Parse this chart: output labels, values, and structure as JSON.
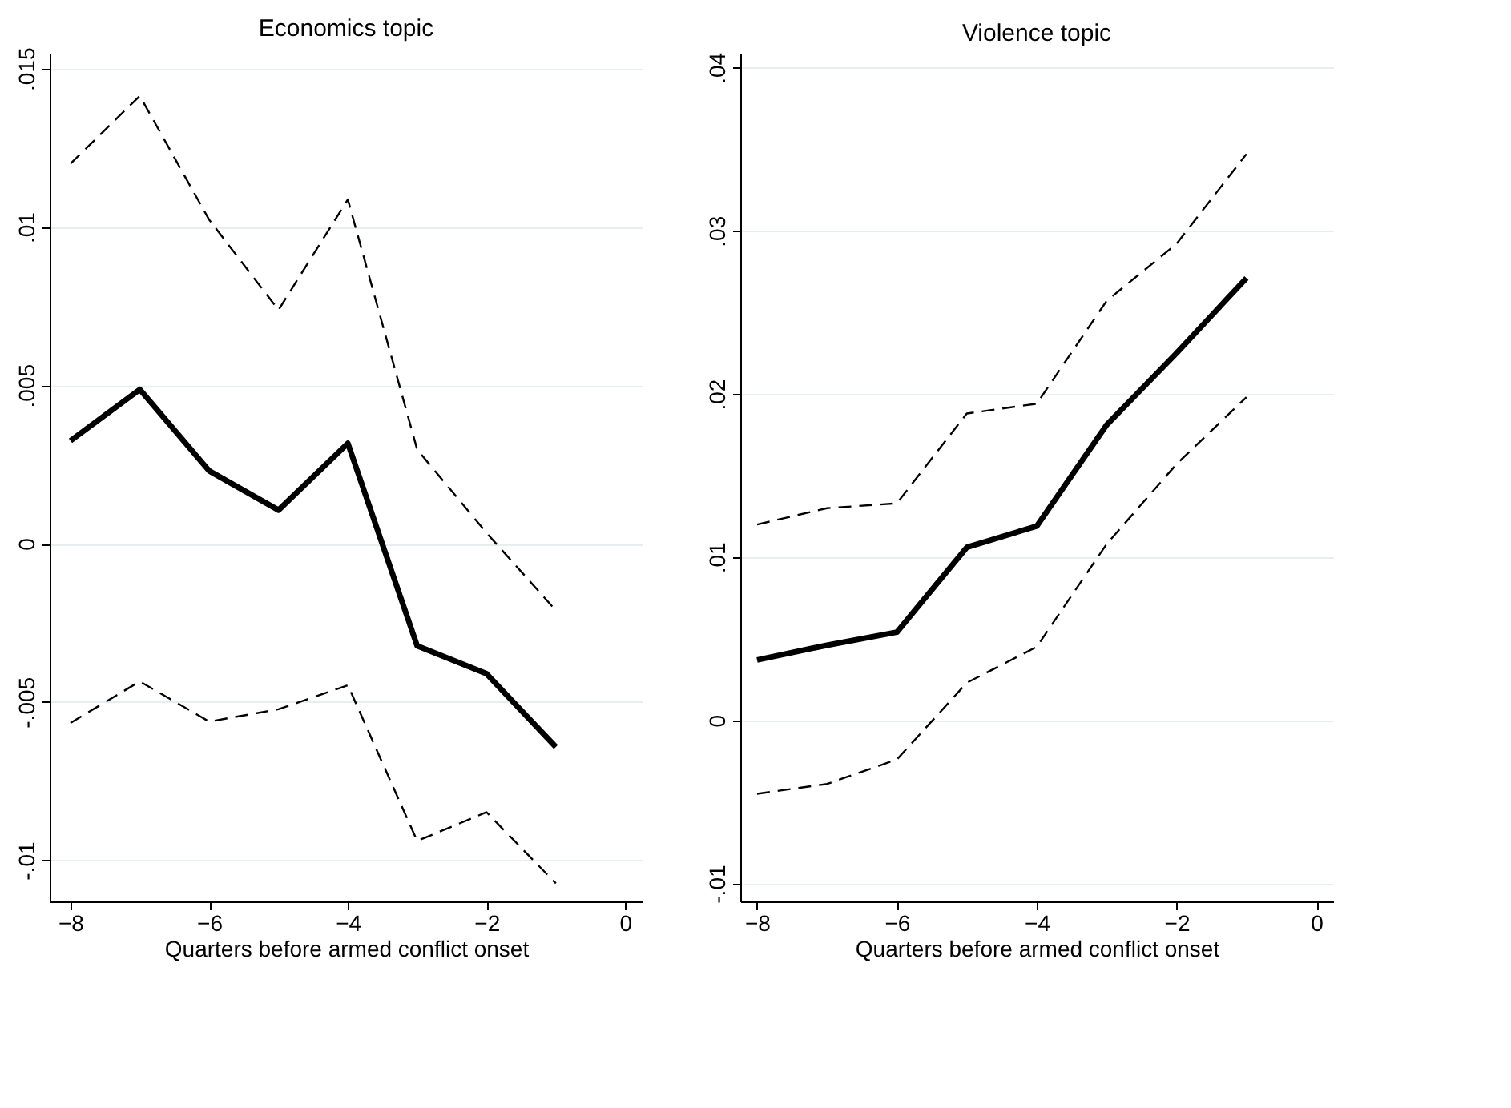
{
  "chart_data": [
    {
      "type": "line",
      "title": "Economics topic",
      "xlabel": "Quarters before armed conflict onset",
      "x": [
        -8,
        -7,
        -6,
        -5,
        -4,
        -3,
        -2,
        -1
      ],
      "xlim": [
        -8.3,
        0.25
      ],
      "xticks": [
        {
          "value": -8,
          "label": "−8"
        },
        {
          "value": -6,
          "label": "−6"
        },
        {
          "value": -4,
          "label": "−4"
        },
        {
          "value": -2,
          "label": "−2"
        },
        0
      ],
      "ylim": [
        -0.0113,
        0.0155
      ],
      "yticks": [
        {
          "value": -0.01,
          "label": "-.01"
        },
        {
          "value": -0.005,
          "label": "-.005"
        },
        0,
        {
          "value": 0.005,
          "label": ".005"
        },
        {
          "value": 0.01,
          "label": ".01"
        },
        {
          "value": 0.015,
          "label": ".015"
        }
      ],
      "grid": "y",
      "series": [
        {
          "color": "#000000",
          "line_style": "solid",
          "values": [
            0.00325,
            0.00487,
            0.0023,
            0.00106,
            0.00317,
            -0.00323,
            -0.00411,
            -0.00642
          ]
        },
        {
          "color": "#000000",
          "line_style": "dashed",
          "values": [
            0.012,
            0.01414,
            0.01023,
            0.00738,
            0.01087,
            0.00297,
            0.00034,
            -0.00211
          ]
        },
        {
          "color": "#000000",
          "line_style": "dashed",
          "values": [
            -0.00566,
            -0.00435,
            -0.00562,
            -0.00523,
            -0.00447,
            -0.00939,
            -0.00848,
            -0.01073
          ]
        }
      ]
    },
    {
      "type": "line",
      "title": "Violence topic",
      "xlabel": "Quarters before armed conflict onset",
      "x": [
        -8,
        -7,
        -6,
        -5,
        -4,
        -3,
        -2,
        -1
      ],
      "xlim": [
        -8.24,
        0.24
      ],
      "xticks": [
        {
          "value": -8,
          "label": "−8"
        },
        {
          "value": -6,
          "label": "−6"
        },
        {
          "value": -4,
          "label": "−4"
        },
        {
          "value": -2,
          "label": "−2"
        },
        0
      ],
      "ylim": [
        -0.0111,
        0.0409
      ],
      "yticks": [
        {
          "value": -0.01,
          "label": "-.01"
        },
        0,
        {
          "value": 0.01,
          "label": ".01"
        },
        {
          "value": 0.02,
          "label": ".02"
        },
        {
          "value": 0.03,
          "label": ".03"
        },
        {
          "value": 0.04,
          "label": ".04"
        }
      ],
      "grid": "y",
      "series": [
        {
          "color": "#000000",
          "line_style": "solid",
          "values": [
            0.0037,
            0.0046,
            0.0054,
            0.0106,
            0.0119,
            0.0181,
            0.0225,
            0.0271
          ]
        },
        {
          "color": "#000000",
          "line_style": "dashed",
          "values": [
            0.012,
            0.013,
            0.0133,
            0.0188,
            0.0194,
            0.0257,
            0.0292,
            0.0347
          ]
        },
        {
          "color": "#000000",
          "line_style": "dashed",
          "values": [
            -0.0045,
            -0.0039,
            -0.0024,
            0.0023,
            0.0045,
            0.0108,
            0.0157,
            0.0198
          ]
        }
      ]
    }
  ]
}
